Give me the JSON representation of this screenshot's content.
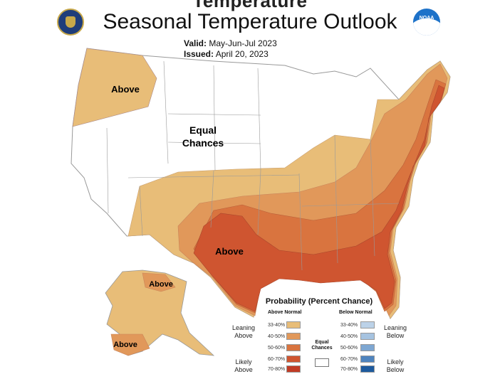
{
  "header": {
    "partial_title": "Temperature",
    "title": "Seasonal Temperature Outlook",
    "valid_label": "Valid:",
    "valid_value": "May-Jun-Jul 2023",
    "issued_label": "Issued:",
    "issued_value": "April 20, 2023",
    "noaa_logo_text": "NOAA"
  },
  "map": {
    "regions": {
      "northwest": "Above",
      "central": "Equal Chances",
      "central_line1": "Equal",
      "central_line2": "Chances",
      "south": "Above",
      "alaska_north": "Above",
      "alaska_south": "Above"
    },
    "colors": {
      "above_33_40": "#e8bd78",
      "above_40_50": "#e1985a",
      "above_50_60": "#d9743f",
      "above_60_70": "#cf5530",
      "above_70_80": "#c13b25",
      "below_33_40": "#bcd2e8",
      "below_40_50": "#a6c3e0",
      "below_50_60": "#7ea7d2",
      "below_60_70": "#4f84be",
      "below_70_80": "#1d5a9e"
    }
  },
  "legend": {
    "title": "Probability (Percent Chance)",
    "above_header": "Above Normal",
    "below_header": "Below Normal",
    "leaning_above": "Leaning Above",
    "likely_above": "Likely Above",
    "leaning_below": "Leaning Below",
    "likely_below": "Likely Below",
    "equal_chances": "Equal Chances",
    "above_bins": [
      "33-40%",
      "40-50%",
      "50-60%",
      "60-70%",
      "70-80%"
    ],
    "below_bins": [
      "33-40%",
      "40-50%",
      "50-60%",
      "60-70%",
      "70-80%"
    ]
  }
}
